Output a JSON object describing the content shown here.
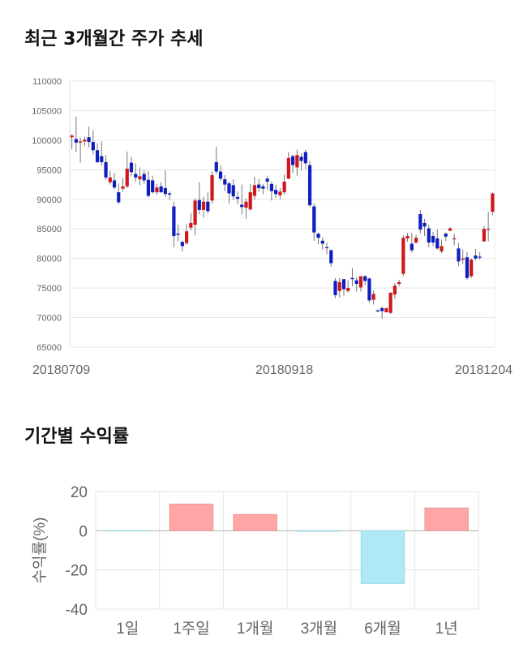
{
  "sections": {
    "price_title": "최근 3개월간 주가 추세",
    "returns_title": "기간별 수익률"
  },
  "colors": {
    "up": "#d0171b",
    "down": "#0f1fbf",
    "positive_bar": "#ffa5a5",
    "negative_bar": "#aee9f5",
    "grid": "#e6e6e6"
  },
  "chart_data": [
    {
      "type": "candlestick",
      "title": "최근 3개월간 주가 추세",
      "ylim": [
        65000,
        110000
      ],
      "y_ticks": [
        65000,
        70000,
        75000,
        80000,
        85000,
        90000,
        95000,
        100000,
        105000,
        110000
      ],
      "x_tick_labels": [
        {
          "index": 0,
          "label": "20180709"
        },
        {
          "index": 50,
          "label": "20180918"
        },
        {
          "index": 99,
          "label": "20181204"
        }
      ],
      "candles": [
        [
          100500,
          100800,
          98500,
          101000
        ],
        [
          100200,
          99600,
          98000,
          104000
        ],
        [
          99600,
          99800,
          96200,
          100400
        ],
        [
          99800,
          100100,
          99000,
          100600
        ],
        [
          100500,
          99700,
          98800,
          102300
        ],
        [
          99700,
          98300,
          97600,
          101700
        ],
        [
          98300,
          96300,
          96100,
          99500
        ],
        [
          97300,
          96300,
          95700,
          99800
        ],
        [
          96300,
          93700,
          93300,
          97500
        ],
        [
          92900,
          93700,
          92500,
          94800
        ],
        [
          93200,
          92000,
          91700,
          94500
        ],
        [
          91200,
          89500,
          89200,
          92700
        ],
        [
          91800,
          92200,
          91300,
          93600
        ],
        [
          92200,
          95200,
          91900,
          98100
        ],
        [
          96200,
          94600,
          93900,
          97200
        ],
        [
          94300,
          93700,
          93000,
          96100
        ],
        [
          93400,
          93900,
          92400,
          95400
        ],
        [
          94300,
          93200,
          92600,
          95000
        ],
        [
          93300,
          90600,
          90300,
          94800
        ],
        [
          93200,
          91200,
          91000,
          94000
        ],
        [
          91200,
          92000,
          90800,
          92600
        ],
        [
          92200,
          91200,
          91100,
          92900
        ],
        [
          91900,
          90900,
          90400,
          94900
        ],
        [
          91000,
          90800,
          89900,
          91400
        ],
        [
          88800,
          83800,
          81900,
          89600
        ],
        [
          84200,
          84000,
          82900,
          85700
        ],
        [
          82800,
          82100,
          81200,
          83000
        ],
        [
          82600,
          84600,
          82300,
          85800
        ],
        [
          85200,
          86000,
          84800,
          87700
        ],
        [
          85700,
          89800,
          83900,
          90200
        ],
        [
          89900,
          88200,
          87500,
          92900
        ],
        [
          88200,
          89600,
          86900,
          90400
        ],
        [
          89600,
          88000,
          87600,
          91200
        ],
        [
          89800,
          94100,
          89300,
          94700
        ],
        [
          96300,
          94700,
          94300,
          98900
        ],
        [
          94700,
          93500,
          93100,
          95800
        ],
        [
          93400,
          92500,
          91400,
          94100
        ],
        [
          92700,
          91000,
          89300,
          93000
        ],
        [
          92400,
          90500,
          89900,
          93400
        ],
        [
          90400,
          90100,
          89200,
          91300
        ],
        [
          89100,
          88700,
          87400,
          92500
        ],
        [
          88600,
          89600,
          86700,
          90200
        ],
        [
          88300,
          91200,
          88100,
          92600
        ],
        [
          90600,
          92400,
          89900,
          93800
        ],
        [
          92500,
          91900,
          91300,
          93400
        ],
        [
          92200,
          91800,
          90900,
          92600
        ],
        [
          93500,
          93000,
          91600,
          94000
        ],
        [
          92600,
          91400,
          89800,
          93000
        ],
        [
          91600,
          90900,
          90200,
          92500
        ],
        [
          90700,
          91300,
          90000,
          91900
        ],
        [
          91200,
          93000,
          90800,
          94200
        ],
        [
          93500,
          97000,
          93400,
          98000
        ],
        [
          97300,
          95800,
          94500,
          97600
        ],
        [
          95400,
          97500,
          94000,
          98400
        ],
        [
          97200,
          96500,
          94900,
          97800
        ],
        [
          98000,
          96100,
          95100,
          98400
        ],
        [
          95800,
          89000,
          88700,
          96500
        ],
        [
          88800,
          84400,
          83000,
          89300
        ],
        [
          84200,
          83500,
          82400,
          84300
        ],
        [
          83000,
          82500,
          81500,
          83600
        ],
        [
          81900,
          81800,
          80700,
          82700
        ],
        [
          81400,
          79200,
          78600,
          81500
        ],
        [
          76200,
          73800,
          73300,
          76700
        ],
        [
          74500,
          76000,
          73400,
          76700
        ],
        [
          76500,
          74800,
          73700,
          76500
        ],
        [
          74500,
          75000,
          74200,
          76300
        ],
        [
          76700,
          76500,
          75300,
          78400
        ],
        [
          76300,
          75700,
          74400,
          76800
        ],
        [
          75100,
          77000,
          74400,
          77000
        ],
        [
          77000,
          76200,
          75500,
          77200
        ],
        [
          76600,
          72900,
          72500,
          76800
        ],
        [
          73000,
          74000,
          72200,
          74600
        ],
        [
          71200,
          71100,
          70900,
          71400
        ],
        [
          71600,
          71100,
          69800,
          71900
        ],
        [
          70900,
          71600,
          71000,
          71700
        ],
        [
          70800,
          74200,
          70600,
          74300
        ],
        [
          73900,
          75400,
          73200,
          75800
        ],
        [
          75700,
          76000,
          75300,
          76400
        ],
        [
          77400,
          83500,
          77000,
          83900
        ],
        [
          83400,
          83800,
          82800,
          84300
        ],
        [
          82500,
          81400,
          81000,
          84300
        ],
        [
          82700,
          83500,
          82500,
          84000
        ],
        [
          87500,
          84900,
          84200,
          88200
        ],
        [
          86000,
          85400,
          83800,
          86700
        ],
        [
          85100,
          82700,
          81900,
          85700
        ],
        [
          83800,
          82700,
          82100,
          84500
        ],
        [
          83400,
          81700,
          81500,
          84900
        ],
        [
          81200,
          82100,
          80900,
          83200
        ],
        [
          84200,
          83700,
          82900,
          84400
        ],
        [
          84700,
          85100,
          84600,
          85300
        ],
        [
          83400,
          83400,
          82200,
          84200
        ],
        [
          81700,
          79500,
          78700,
          82600
        ],
        [
          79800,
          80000,
          79100,
          81500
        ],
        [
          80200,
          76700,
          76400,
          81100
        ],
        [
          77000,
          79800,
          76700,
          80000
        ],
        [
          80500,
          80000,
          79700,
          81600
        ],
        [
          80300,
          80200,
          79800,
          81100
        ],
        [
          82900,
          85000,
          82800,
          85500
        ],
        [
          84900,
          85000,
          82900,
          87900
        ],
        [
          87900,
          91000,
          87300,
          91200
        ]
      ]
    },
    {
      "type": "bar",
      "title": "기간별 수익률",
      "ylabel": "수익률(%)",
      "ylim": [
        -40,
        20
      ],
      "y_ticks": [
        -40,
        -20,
        0,
        20
      ],
      "categories": [
        "1일",
        "1주일",
        "1개월",
        "3개월",
        "6개월",
        "1년"
      ],
      "values": [
        0,
        13.6,
        8.3,
        -0.3,
        -26.9,
        11.6
      ]
    }
  ]
}
